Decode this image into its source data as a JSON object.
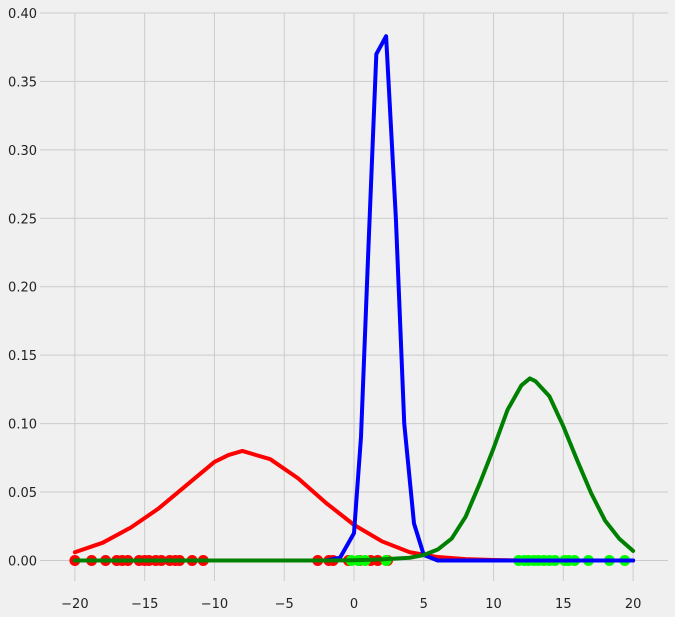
{
  "chart_data": {
    "type": "line",
    "title": "",
    "xlabel": "",
    "ylabel": "",
    "xlim": [
      -22.5,
      22.5
    ],
    "ylim": [
      -0.015,
      0.4
    ],
    "xticks": [
      -20,
      -15,
      -10,
      -5,
      0,
      5,
      10,
      15,
      20
    ],
    "yticks": [
      0.0,
      0.05,
      0.1,
      0.15,
      0.2,
      0.25,
      0.3,
      0.35,
      0.4
    ],
    "xtick_labels": [
      "−20",
      "−15",
      "−10",
      "−5",
      "0",
      "5",
      "10",
      "15",
      "20"
    ],
    "ytick_labels": [
      "0.00",
      "0.05",
      "0.10",
      "0.15",
      "0.20",
      "0.25",
      "0.30",
      "0.35",
      "0.40"
    ],
    "grid": true,
    "background": "#f0f0f0",
    "series": [
      {
        "color": "#ff0000",
        "x": [
          -20,
          -18,
          -16,
          -14,
          -12,
          -10,
          -9,
          -8,
          -6,
          -4,
          -2,
          0,
          2,
          4,
          6,
          8,
          10,
          12,
          14,
          16,
          18,
          20
        ],
        "y": [
          0.006,
          0.013,
          0.024,
          0.038,
          0.055,
          0.072,
          0.077,
          0.08,
          0.074,
          0.06,
          0.042,
          0.026,
          0.014,
          0.006,
          0.0025,
          0.001,
          0.0003,
          0.0,
          0.0,
          0.0,
          0.0,
          0.0
        ]
      },
      {
        "color": "#0000ff",
        "x": [
          -20,
          -2,
          -1,
          0,
          0.5,
          1,
          1.6,
          2.3,
          3,
          3.6,
          4.3,
          5,
          6,
          20
        ],
        "y": [
          0.0,
          0.0,
          0.002,
          0.02,
          0.09,
          0.22,
          0.37,
          0.383,
          0.25,
          0.1,
          0.027,
          0.004,
          0.0,
          0.0
        ]
      },
      {
        "color": "#008000",
        "x": [
          -20,
          -2,
          0,
          2,
          4,
          5,
          6,
          7,
          8,
          9,
          10,
          11,
          12,
          12.6,
          13,
          14,
          15,
          16,
          17,
          18,
          19,
          20
        ],
        "y": [
          0.0,
          0.0,
          0.0002,
          0.0008,
          0.002,
          0.004,
          0.008,
          0.016,
          0.032,
          0.056,
          0.082,
          0.11,
          0.128,
          0.133,
          0.131,
          0.12,
          0.098,
          0.073,
          0.049,
          0.029,
          0.016,
          0.007
        ]
      }
    ],
    "points": [
      {
        "color": "#ff0000",
        "y": 0.0,
        "x": [
          -20,
          -18.8,
          -17.8,
          -17,
          -16.6,
          -16.2,
          -15.4,
          -15,
          -14.7,
          -14.2,
          -13.8,
          -13.2,
          -12.8,
          -12.5,
          -11.6,
          -10.8,
          -2.6,
          -1.8,
          -1.5,
          -0.4,
          0.4,
          1.2,
          1.7,
          2.4
        ]
      },
      {
        "color": "#00ff00",
        "y": 0.0,
        "x": [
          11.8,
          12.2,
          12.5,
          12.9,
          13.2,
          13.6,
          14.0,
          14.4,
          15.1,
          15.4,
          15.8,
          16.8,
          18.3,
          19.4,
          -0.2,
          0.3,
          0.8,
          2.3
        ]
      },
      {
        "color": "#0000ff",
        "y": 0.0,
        "x": []
      }
    ]
  }
}
